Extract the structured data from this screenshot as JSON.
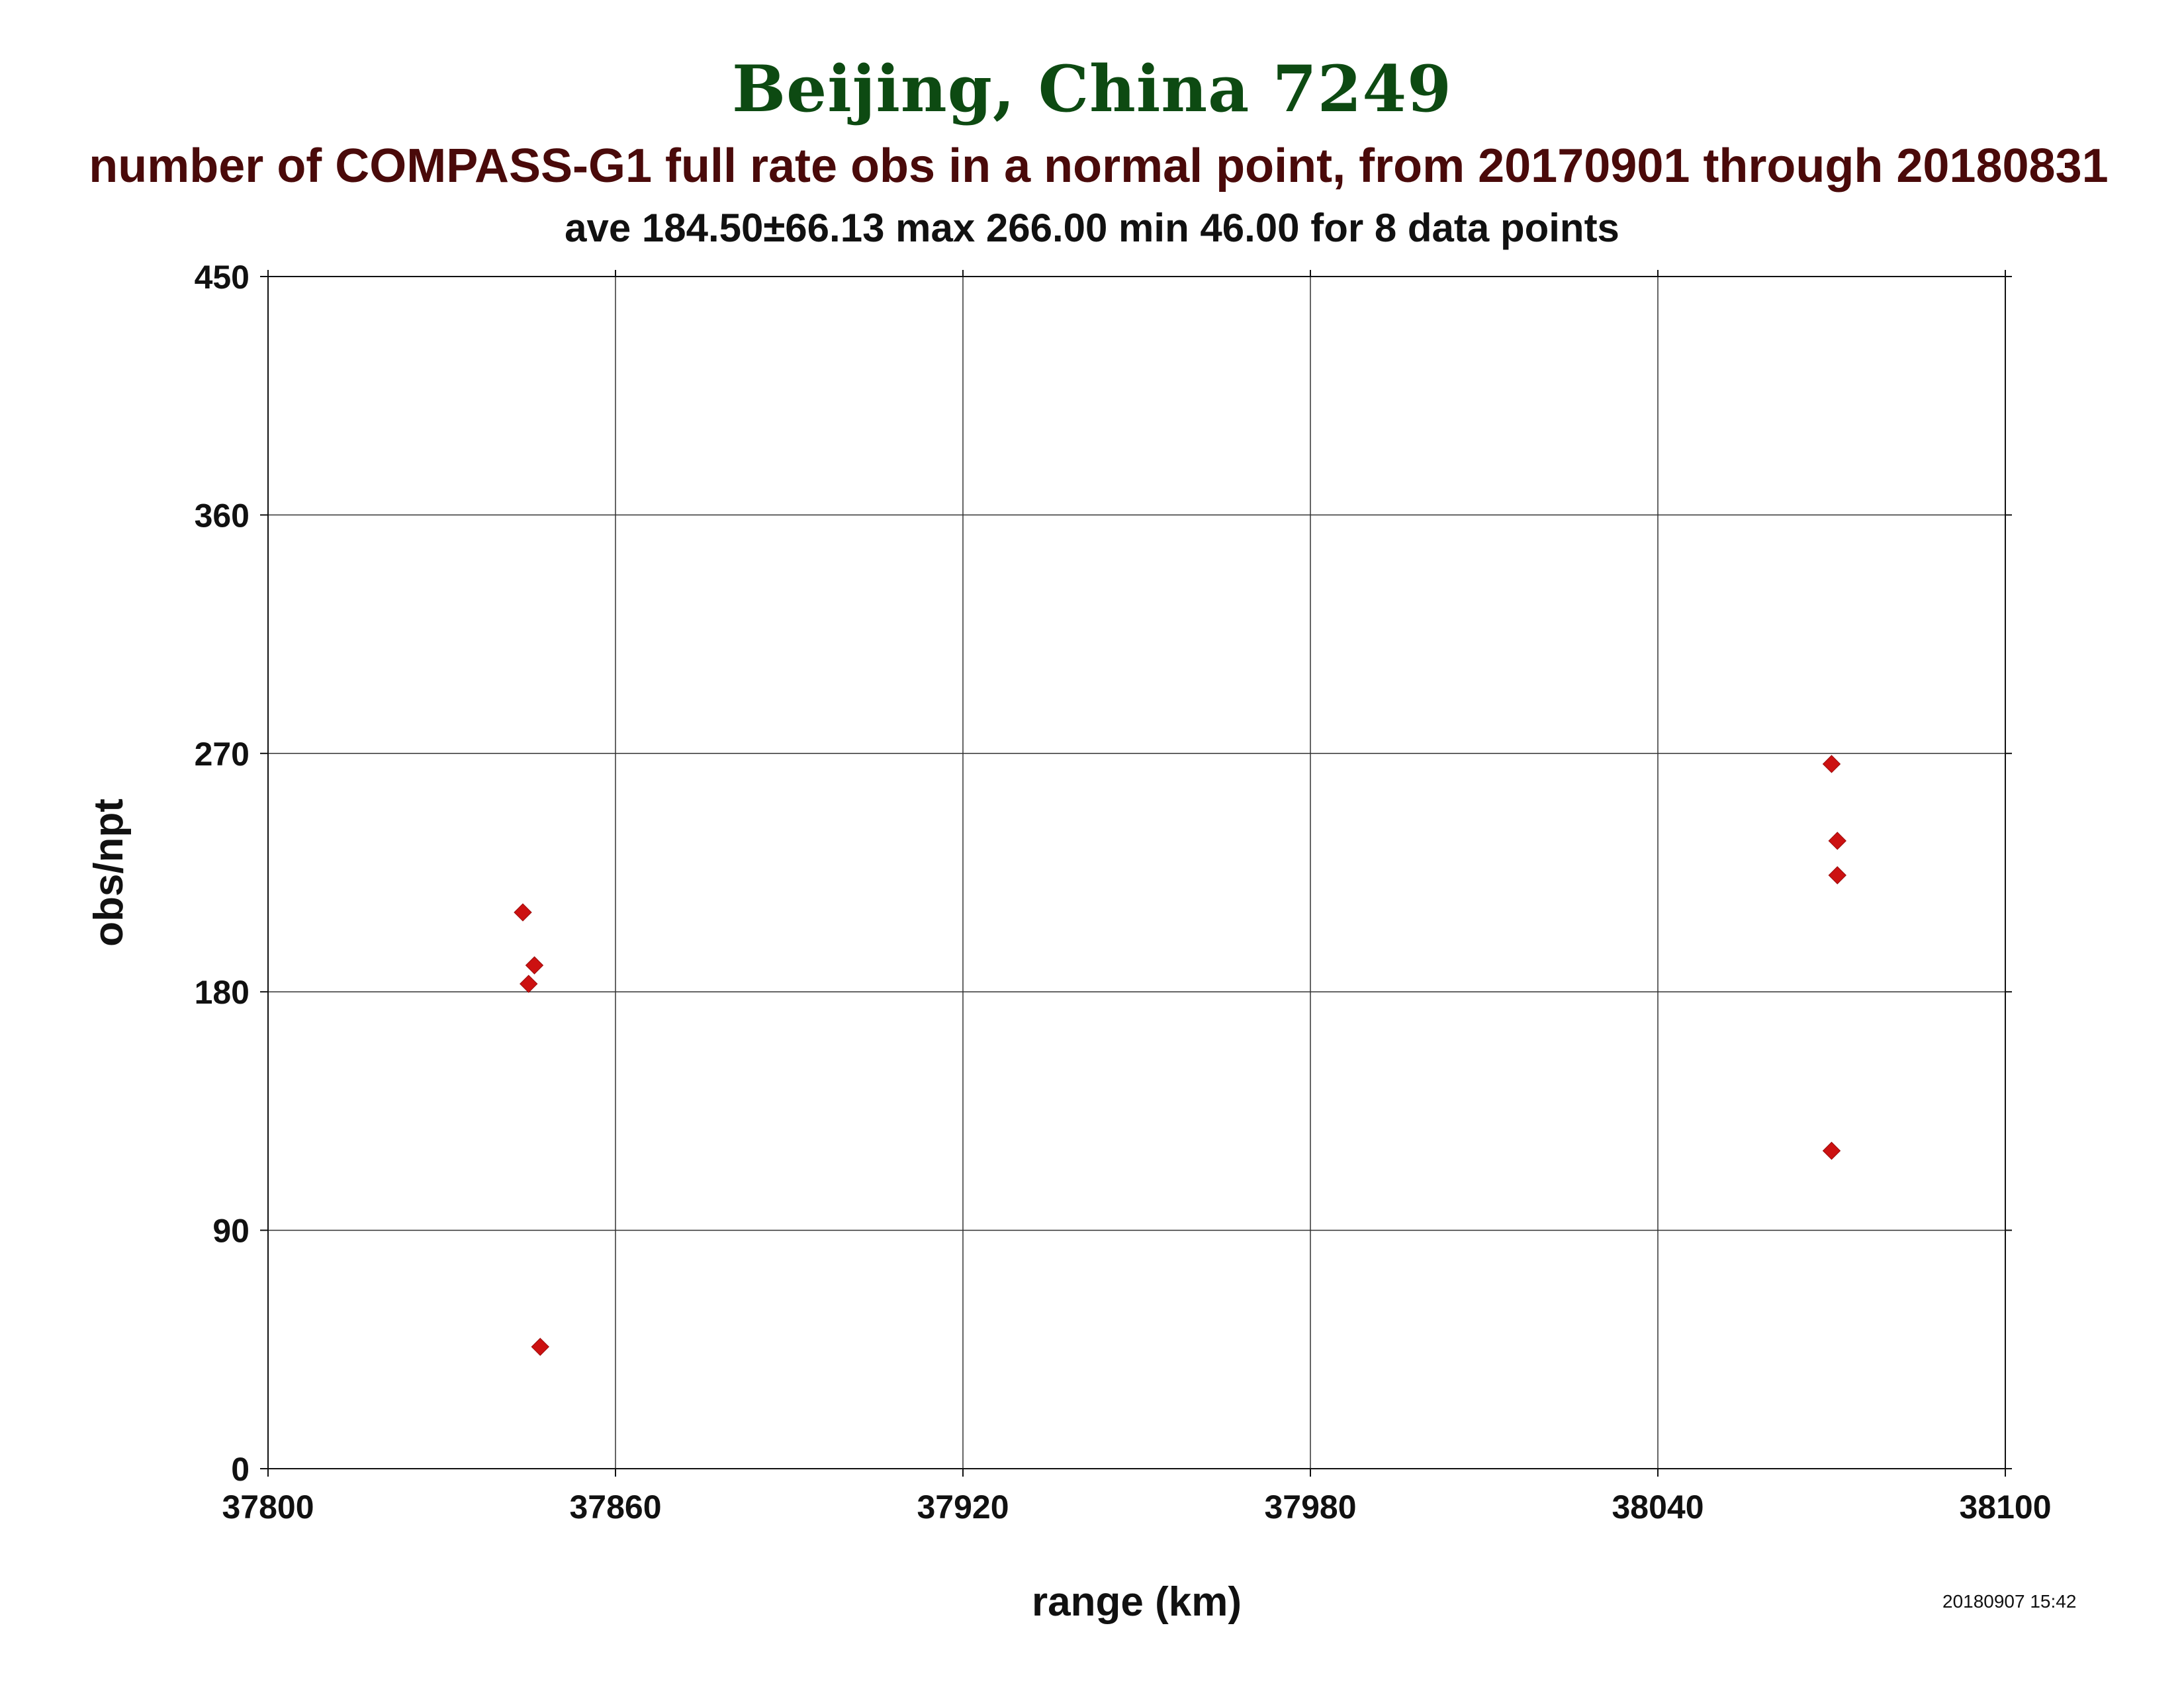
{
  "header": {
    "title": "Beijing, China 7249",
    "subtitle": "number of COMPASS-G1 full rate obs in a normal point, from 20170901 through 20180831",
    "stats": "ave 184.50±66.13 max 266.00 min 46.00 for 8 data points"
  },
  "footer": {
    "timestamp": "20180907 15:42"
  },
  "colors": {
    "title": "#0d4a12",
    "subtitle": "#4a0a0a",
    "marker": "#cc1111",
    "grid": "#333333"
  },
  "chart_data": {
    "type": "scatter",
    "title": "Beijing, China 7249",
    "subtitle": "number of COMPASS-G1 full rate obs in a normal point, from 20170901 through 20180831",
    "xlabel": "range (km)",
    "ylabel": "obs/npt",
    "xlim": [
      37800,
      38100
    ],
    "ylim": [
      0,
      450
    ],
    "xticks": [
      "37800",
      "37860",
      "37920",
      "37980",
      "38040",
      "38100"
    ],
    "yticks": [
      "0",
      "90",
      "180",
      "270",
      "360",
      "450"
    ],
    "grid": true,
    "marker": "diamond",
    "series": [
      {
        "points": [
          {
            "x": 37844,
            "y": 210
          },
          {
            "x": 37846,
            "y": 190
          },
          {
            "x": 37845,
            "y": 183
          },
          {
            "x": 37847,
            "y": 46
          },
          {
            "x": 38070,
            "y": 266
          },
          {
            "x": 38071,
            "y": 237
          },
          {
            "x": 38071,
            "y": 224
          },
          {
            "x": 38070,
            "y": 120
          }
        ]
      }
    ]
  }
}
